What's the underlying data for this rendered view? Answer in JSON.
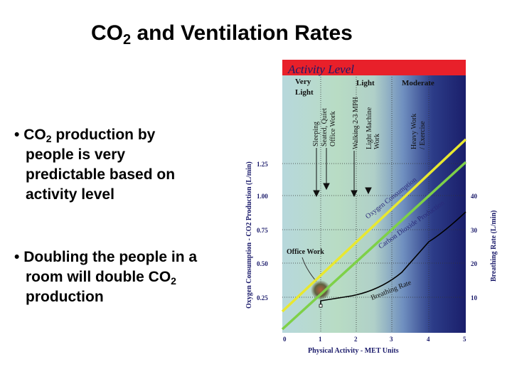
{
  "slide": {
    "title_main": "CO",
    "title_sub": "2",
    "title_rest": " and Ventilation Rates",
    "bullet1": {
      "marker": "•",
      "l1a": "CO",
      "l1sub": "2",
      "l1b": " production by",
      "l2": "people is very",
      "l3": "predictable based on",
      "l4": "activity level"
    },
    "bullet2": {
      "marker": "•",
      "l1": "Doubling the people in a",
      "l2a": "room will double CO",
      "l2sub": "2",
      "l3": "production"
    }
  },
  "figure": {
    "header": "Activity Level",
    "levels": [
      "Very",
      "Light",
      "Light",
      "Moderate"
    ],
    "activities": [
      "Sleeping",
      "Seated, Quiet",
      "Office Work",
      "Walking 2-3 MPH",
      "Light Machine",
      "Work",
      "Heavy Work",
      "/ Exercise"
    ],
    "callout": "Office Work",
    "curve_labels": [
      "Oxygen Consumption",
      "Carbon Dioxide Production",
      "Breathing Rate"
    ],
    "x_axis_label": "Physical Activity - MET Units",
    "y_left_label": "Oxygen Consumption - CO2 Production (L/min)",
    "y_right_label": "Breathing Rate (L/min)",
    "x_ticks": [
      "0",
      "1",
      "2",
      "3",
      "4",
      "5"
    ],
    "y_left_ticks": [
      "0.25",
      "0.50",
      "0.75",
      "1.00",
      "1.25"
    ],
    "y_right_ticks": [
      "10",
      "20",
      "30",
      "40"
    ],
    "colors": {
      "header": "#e8202a",
      "oxygen": "#e8e830",
      "co2": "#7ed048",
      "breathing": "#000000"
    }
  }
}
